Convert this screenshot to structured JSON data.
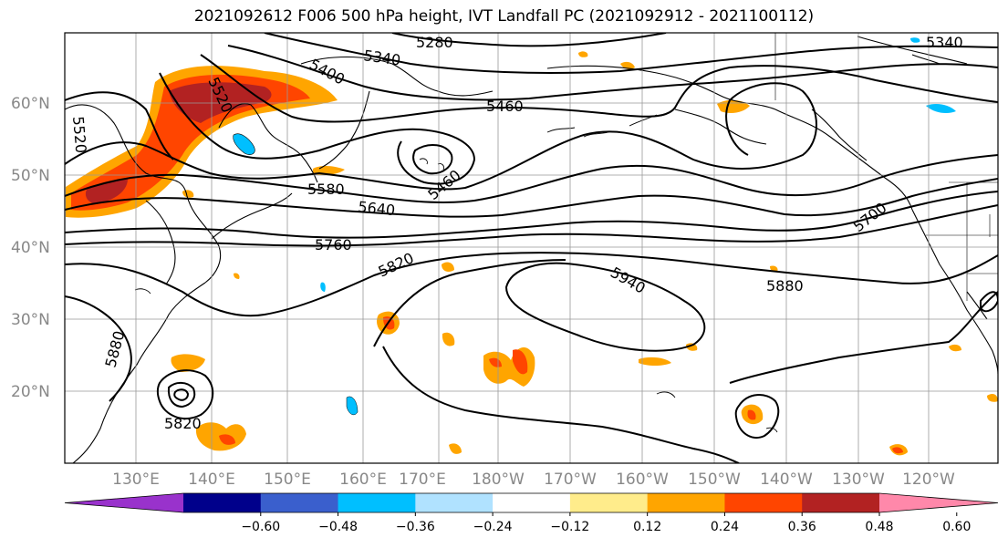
{
  "title": "2021092612 F006 500 hPa height, IVT Landfall PC (2021092912 - 2021100112)",
  "lat_labels": [
    "60°N",
    "50°N",
    "40°N",
    "30°N",
    "20°N"
  ],
  "lon_labels": [
    "130°E",
    "140°E",
    "150°E",
    "160°E",
    "170°E",
    "180°W",
    "170°W",
    "160°W",
    "150°W",
    "140°W",
    "130°W",
    "120°W"
  ],
  "contour_labels": [
    "5280",
    "5340",
    "5340",
    "5400",
    "5520",
    "5520",
    "5460",
    "5460",
    "5580",
    "5640",
    "5700",
    "5760",
    "5820",
    "5940",
    "5880",
    "5880",
    "5820"
  ],
  "colorbar": {
    "colors": [
      "#9932cc",
      "#00008b",
      "#3a5fcd",
      "#00bfff",
      "#b0e2ff",
      "#ffffff",
      "#ffec8b",
      "#ffa500",
      "#ff4500",
      "#b22222",
      "#ff88aa"
    ],
    "tick_labels": [
      "−0.60",
      "−0.48",
      "−0.36",
      "−0.24",
      "−0.12",
      "0.12",
      "0.24",
      "0.36",
      "0.48",
      "0.60"
    ]
  }
}
